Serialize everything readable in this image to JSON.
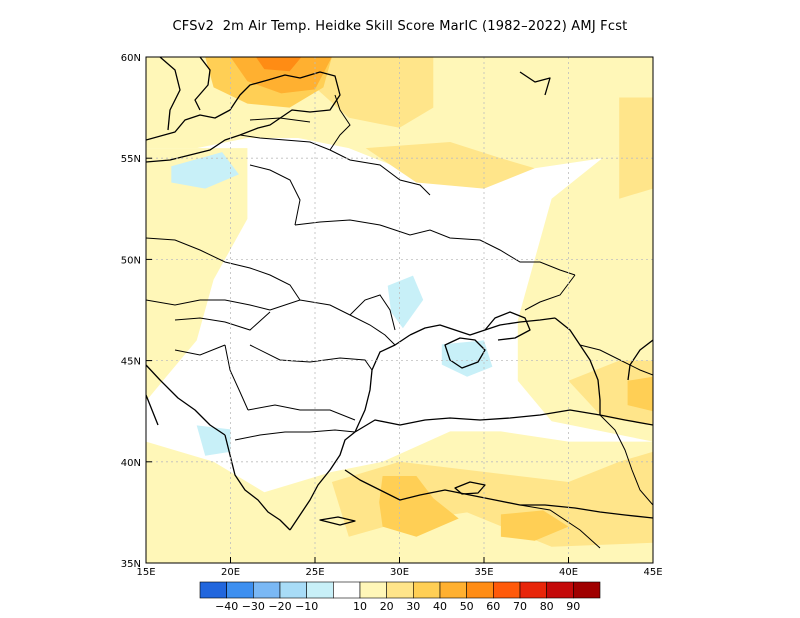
{
  "title": "CFSv2  2m Air Temp. Heidke Skill Score MarIC (1982–2022) AMJ Fcst",
  "map": {
    "lon_range": [
      15,
      45
    ],
    "lat_range": [
      35,
      60
    ],
    "lon_ticks": [
      {
        "value": 15,
        "label": "15E"
      },
      {
        "value": 20,
        "label": "20E"
      },
      {
        "value": 25,
        "label": "25E"
      },
      {
        "value": 30,
        "label": "30E"
      },
      {
        "value": 35,
        "label": "35E"
      },
      {
        "value": 40,
        "label": "40E"
      },
      {
        "value": 45,
        "label": "45E"
      }
    ],
    "lat_ticks": [
      {
        "value": 60,
        "label": "60N"
      },
      {
        "value": 55,
        "label": "55N"
      },
      {
        "value": 50,
        "label": "50N"
      },
      {
        "value": 45,
        "label": "45N"
      },
      {
        "value": 40,
        "label": "40N"
      },
      {
        "value": 35,
        "label": "35N"
      }
    ],
    "gridlines": true
  },
  "colorbar": {
    "colors": [
      "#2166dd",
      "#3d8ff0",
      "#7ab8f5",
      "#a8dcf7",
      "#c8f0f8",
      "#ffffff",
      "#fff7b8",
      "#ffe58a",
      "#ffcf55",
      "#ffb030",
      "#ff8c14",
      "#ff5a0a",
      "#e8260a",
      "#c40a0a",
      "#a00000"
    ],
    "labels": [
      "−40",
      "−30",
      "−20",
      "−10",
      "10",
      "20",
      "30",
      "40",
      "50",
      "60",
      "70",
      "80",
      "90"
    ]
  },
  "regions": [
    {
      "color": "#fff7b8",
      "label": "10-20 north band",
      "points": [
        [
          15,
          60
        ],
        [
          45,
          60
        ],
        [
          45,
          55.5
        ],
        [
          42,
          55
        ],
        [
          38,
          54.5
        ],
        [
          34,
          54
        ],
        [
          30,
          54.5
        ],
        [
          27,
          55.5
        ],
        [
          24,
          56
        ],
        [
          21,
          56
        ],
        [
          18,
          55.5
        ],
        [
          15,
          55.5
        ]
      ]
    },
    {
      "color": "#fff7b8",
      "label": "10-20 west band",
      "points": [
        [
          15,
          55.5
        ],
        [
          21,
          55.5
        ],
        [
          21,
          52
        ],
        [
          19,
          49
        ],
        [
          18,
          46
        ],
        [
          16,
          44
        ],
        [
          15,
          43
        ]
      ]
    },
    {
      "color": "#fff7b8",
      "label": "10-20 east band",
      "points": [
        [
          45,
          55.5
        ],
        [
          42,
          55
        ],
        [
          39,
          53
        ],
        [
          38,
          50
        ],
        [
          37,
          47
        ],
        [
          37,
          44
        ],
        [
          39,
          42
        ],
        [
          42,
          41.5
        ],
        [
          45,
          41
        ]
      ]
    },
    {
      "color": "#fff7b8",
      "label": "10-20 south band",
      "points": [
        [
          15,
          41
        ],
        [
          19,
          40
        ],
        [
          22,
          38.5
        ],
        [
          26,
          39.5
        ],
        [
          29,
          40
        ],
        [
          33,
          41.5
        ],
        [
          36,
          41.5
        ],
        [
          40,
          41
        ],
        [
          45,
          41
        ],
        [
          45,
          35
        ],
        [
          15,
          35
        ]
      ]
    },
    {
      "color": "#ffe58a",
      "label": "20-30 north-central",
      "points": [
        [
          26,
          60
        ],
        [
          32,
          60
        ],
        [
          32,
          57.5
        ],
        [
          30,
          56.5
        ],
        [
          27,
          57
        ],
        [
          25,
          58.5
        ]
      ]
    },
    {
      "color": "#ffe58a",
      "label": "20-30 central",
      "points": [
        [
          28,
          55.5
        ],
        [
          33,
          55.8
        ],
        [
          36,
          55
        ],
        [
          38,
          54.5
        ],
        [
          35,
          53.5
        ],
        [
          31,
          53.8
        ]
      ]
    },
    {
      "color": "#ffe58a",
      "label": "20-30 east-north",
      "points": [
        [
          43,
          58
        ],
        [
          45,
          58
        ],
        [
          45,
          53.5
        ],
        [
          43,
          53
        ]
      ]
    },
    {
      "color": "#ffe58a",
      "label": "20-30 southeast",
      "points": [
        [
          26,
          39
        ],
        [
          30,
          40
        ],
        [
          35,
          39.5
        ],
        [
          40,
          39
        ],
        [
          43,
          40
        ],
        [
          45,
          40.5
        ],
        [
          45,
          36
        ],
        [
          39,
          35.8
        ],
        [
          34,
          37.5
        ],
        [
          30,
          37
        ],
        [
          27,
          36.3
        ]
      ]
    },
    {
      "color": "#ffe58a",
      "label": "20-30 caucasus",
      "points": [
        [
          40,
          44
        ],
        [
          43,
          45
        ],
        [
          45,
          45
        ],
        [
          45,
          41.8
        ],
        [
          42,
          42.2
        ]
      ]
    },
    {
      "color": "#ffcf55",
      "label": "30-40 southeast core",
      "points": [
        [
          29,
          39.3
        ],
        [
          31,
          39.3
        ],
        [
          32,
          38.2
        ],
        [
          33.5,
          37.2
        ],
        [
          31,
          36.3
        ],
        [
          29,
          36.8
        ],
        [
          28.8,
          38
        ]
      ]
    },
    {
      "color": "#ffcf55",
      "label": "30-40 southeast 2",
      "points": [
        [
          36,
          37.4
        ],
        [
          38.5,
          37.6
        ],
        [
          40,
          36.8
        ],
        [
          38,
          36.1
        ],
        [
          36,
          36.3
        ]
      ]
    },
    {
      "color": "#ffcf55",
      "label": "30-40 caucasus core",
      "points": [
        [
          43.5,
          44
        ],
        [
          45,
          44.2
        ],
        [
          45,
          42.5
        ],
        [
          43.5,
          42.8
        ]
      ]
    },
    {
      "color": "#ffcf55",
      "label": "30-40 baltic",
      "points": [
        [
          18.5,
          60
        ],
        [
          26,
          60
        ],
        [
          25.5,
          58.5
        ],
        [
          23.5,
          57.5
        ],
        [
          21,
          57.7
        ],
        [
          19,
          58.5
        ]
      ]
    },
    {
      "color": "#ffb030",
      "label": "40-50 baltic core",
      "points": [
        [
          20,
          60
        ],
        [
          26,
          60
        ],
        [
          25,
          58.4
        ],
        [
          23,
          58.2
        ],
        [
          21,
          58.8
        ]
      ]
    },
    {
      "color": "#ff8c14",
      "label": "50-60 baltic peak",
      "points": [
        [
          21.5,
          60
        ],
        [
          24.2,
          60
        ],
        [
          23.5,
          59.3
        ],
        [
          22,
          59.4
        ]
      ]
    },
    {
      "color": "#c8f0f8",
      "label": "blue baltic",
      "points": [
        [
          16.5,
          54.6
        ],
        [
          19.5,
          55.3
        ],
        [
          20.5,
          54.2
        ],
        [
          18.5,
          53.5
        ],
        [
          16.5,
          53.8
        ]
      ]
    },
    {
      "color": "#c8f0f8",
      "label": "blue ukraine",
      "points": [
        [
          29.3,
          48.7
        ],
        [
          30.8,
          49.2
        ],
        [
          31.4,
          48
        ],
        [
          30.2,
          46.6
        ],
        [
          29.5,
          47.4
        ]
      ]
    },
    {
      "color": "#c8f0f8",
      "label": "blue crimea",
      "points": [
        [
          32.5,
          45.8
        ],
        [
          35,
          46
        ],
        [
          35.5,
          44.7
        ],
        [
          34,
          44.2
        ],
        [
          32.5,
          44.8
        ]
      ]
    },
    {
      "color": "#c8f0f8",
      "label": "blue balkan",
      "points": [
        [
          18,
          41.8
        ],
        [
          20,
          41.6
        ],
        [
          20,
          40.5
        ],
        [
          18.5,
          40.3
        ]
      ]
    }
  ]
}
